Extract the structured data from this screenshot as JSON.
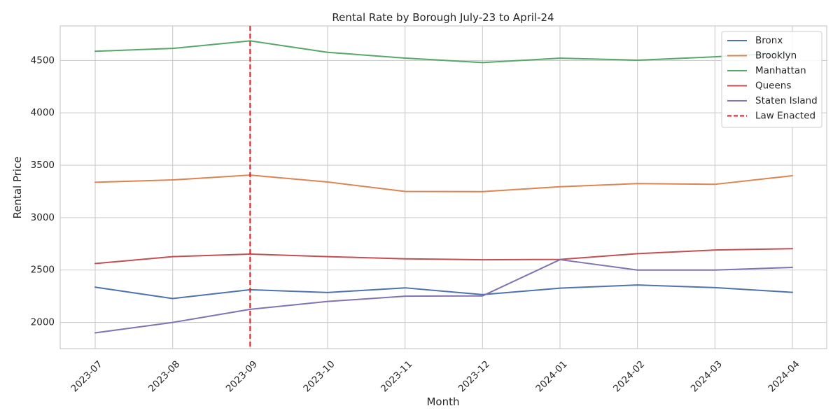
{
  "chart_data": {
    "type": "line",
    "title": "Rental Rate by Borough July-23 to April-24",
    "xlabel": "Month",
    "ylabel": "Rental Price",
    "categories": [
      "2023-07",
      "2023-08",
      "2023-09",
      "2023-10",
      "2023-11",
      "2023-12",
      "2024-01",
      "2024-02",
      "2024-03",
      "2024-04"
    ],
    "yticks": [
      2000,
      2500,
      3000,
      3500,
      4000,
      4500
    ],
    "ylim": [
      1750,
      4830
    ],
    "grid": true,
    "legend_position": "top-right",
    "series": [
      {
        "name": "Bronx",
        "color": "#4c72b0",
        "values": [
          2336,
          2228,
          2312,
          2285,
          2330,
          2265,
          2327,
          2357,
          2332,
          2287
        ]
      },
      {
        "name": "Brooklyn",
        "color": "#dd8452",
        "values": [
          3338,
          3360,
          3406,
          3340,
          3250,
          3248,
          3295,
          3325,
          3318,
          3400
        ]
      },
      {
        "name": "Manhattan",
        "color": "#55a868",
        "values": [
          4588,
          4615,
          4687,
          4578,
          4523,
          4480,
          4522,
          4503,
          4535,
          4575
        ]
      },
      {
        "name": "Queens",
        "color": "#c44e52",
        "values": [
          2562,
          2628,
          2652,
          2628,
          2607,
          2598,
          2601,
          2656,
          2691,
          2704
        ]
      },
      {
        "name": "Staten Island",
        "color": "#8172b3",
        "values": [
          1900,
          2000,
          2125,
          2200,
          2250,
          2253,
          2599,
          2500,
          2500,
          2525
        ]
      }
    ],
    "vline": {
      "name": "Law Enacted",
      "x": "2023-09",
      "color": "#e41a1c",
      "style": "dashed"
    }
  }
}
